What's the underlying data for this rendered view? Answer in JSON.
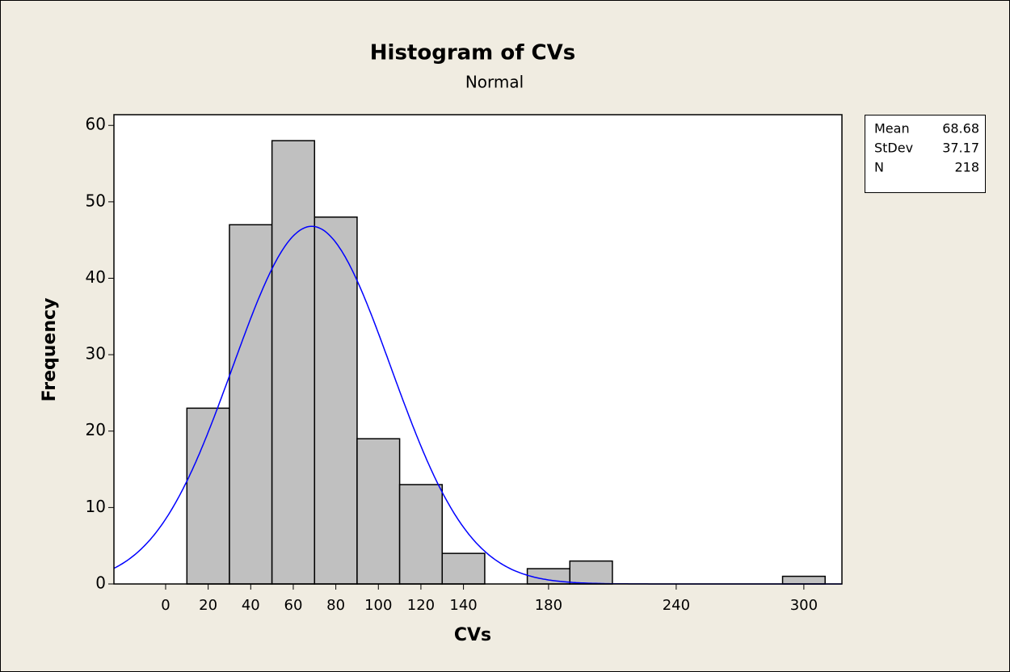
{
  "chart_data": {
    "type": "histogram",
    "title": "Histogram of CVs",
    "subtitle": "Normal",
    "x_label": "CVs",
    "y_label": "Frequency",
    "bins": [
      10,
      30,
      50,
      70,
      90,
      110,
      130,
      150,
      170,
      190,
      210,
      230,
      250,
      270,
      290,
      310
    ],
    "values": [
      23,
      47,
      58,
      48,
      19,
      13,
      4,
      0,
      2,
      3,
      0,
      0,
      0,
      0,
      1
    ],
    "color": "#c0c0c0",
    "fit": "normal",
    "fit_color": "#0000ff",
    "xlim": [
      -24.3,
      317.9
    ],
    "xticks": [
      0,
      20,
      40,
      60,
      80,
      100,
      120,
      140,
      180,
      240,
      300
    ],
    "ylim": [
      0,
      61.4
    ],
    "yticks": [
      0,
      10,
      20,
      30,
      40,
      50,
      60
    ],
    "stats": [
      {
        "label": "Mean",
        "value": 68.68
      },
      {
        "label": "StDev",
        "value": 37.17
      },
      {
        "label": "N",
        "value": 218
      }
    ]
  }
}
